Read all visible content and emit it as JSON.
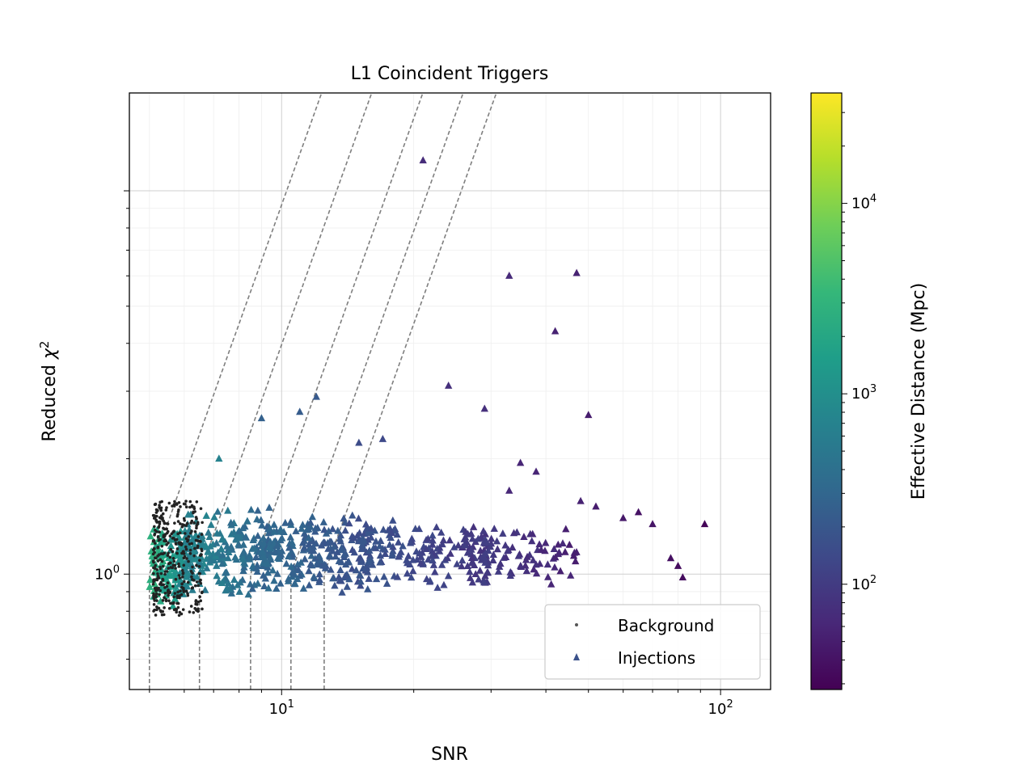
{
  "chart_data": {
    "type": "scatter",
    "title": "L1 Coincident Triggers",
    "xlabel": "SNR",
    "ylabel_prefix": "Reduced ",
    "ylabel_symbol": "χ",
    "ylabel_sup": "2",
    "xscale": "log",
    "yscale": "log",
    "xlim": [
      4.5,
      130
    ],
    "ylim": [
      0.5,
      18
    ],
    "x_ticks": [
      {
        "value": 10,
        "base": "10",
        "exp": "1"
      },
      {
        "value": 100,
        "base": "10",
        "exp": "2"
      }
    ],
    "y_ticks": [
      {
        "value": 1,
        "base": "10",
        "exp": "0"
      }
    ],
    "grid": true,
    "legend": {
      "position": "lower-right",
      "entries": [
        {
          "label": "Background",
          "marker": "dot",
          "color": "#555555"
        },
        {
          "label": "Injections",
          "marker": "triangle",
          "color": "#3b528b"
        }
      ]
    },
    "colorbar": {
      "label": "Effective Distance (Mpc)",
      "scale": "log",
      "range": [
        28,
        38000
      ],
      "ticks": [
        {
          "value": 100,
          "base": "10",
          "exp": "2"
        },
        {
          "value": 1000,
          "base": "10",
          "exp": "3"
        },
        {
          "value": 10000,
          "base": "10",
          "exp": "4"
        }
      ],
      "colormap": [
        "#440154",
        "#482878",
        "#3e4989",
        "#31688e",
        "#26828e",
        "#1f9e89",
        "#35b779",
        "#6ece58",
        "#b5de2b",
        "#fde725"
      ]
    },
    "threshold_curves": [
      {
        "snr_cut": 5.0
      },
      {
        "snr_cut": 6.5
      },
      {
        "snr_cut": 8.5
      },
      {
        "snr_cut": 10.5
      },
      {
        "snr_cut": 12.5
      }
    ],
    "injections_notable": [
      {
        "snr": 21,
        "chi2": 12.0,
        "dist": 70
      },
      {
        "snr": 33,
        "chi2": 6.0,
        "dist": 65
      },
      {
        "snr": 47,
        "chi2": 6.1,
        "dist": 55
      },
      {
        "snr": 42,
        "chi2": 4.3,
        "dist": 55
      },
      {
        "snr": 24,
        "chi2": 3.1,
        "dist": 75
      },
      {
        "snr": 29,
        "chi2": 2.7,
        "dist": 75
      },
      {
        "snr": 50,
        "chi2": 2.6,
        "dist": 50
      },
      {
        "snr": 12,
        "chi2": 2.9,
        "dist": 210
      },
      {
        "snr": 11,
        "chi2": 2.65,
        "dist": 230
      },
      {
        "snr": 9,
        "chi2": 2.55,
        "dist": 260
      },
      {
        "snr": 7.2,
        "chi2": 2.0,
        "dist": 700
      },
      {
        "snr": 15,
        "chi2": 2.2,
        "dist": 150
      },
      {
        "snr": 17,
        "chi2": 2.25,
        "dist": 140
      },
      {
        "snr": 92,
        "chi2": 1.35,
        "dist": 30
      },
      {
        "snr": 80,
        "chi2": 1.05,
        "dist": 35
      },
      {
        "snr": 82,
        "chi2": 0.98,
        "dist": 35
      },
      {
        "snr": 77,
        "chi2": 1.1,
        "dist": 38
      },
      {
        "snr": 65,
        "chi2": 1.45,
        "dist": 40
      },
      {
        "snr": 60,
        "chi2": 1.4,
        "dist": 45
      },
      {
        "snr": 70,
        "chi2": 1.35,
        "dist": 42
      },
      {
        "snr": 38,
        "chi2": 1.85,
        "dist": 60
      },
      {
        "snr": 35,
        "chi2": 1.95,
        "dist": 60
      },
      {
        "snr": 33,
        "chi2": 1.65,
        "dist": 62
      },
      {
        "snr": 48,
        "chi2": 1.55,
        "dist": 55
      },
      {
        "snr": 52,
        "chi2": 1.5,
        "dist": 50
      }
    ],
    "clusters": {
      "injections": [
        {
          "snr_range": [
            5.0,
            6.3
          ],
          "chi2_range": [
            0.82,
            1.35
          ],
          "dist_range": [
            600,
            3000
          ],
          "count": 140
        },
        {
          "snr_range": [
            6.0,
            9.5
          ],
          "chi2_range": [
            0.85,
            1.55
          ],
          "dist_range": [
            250,
            800
          ],
          "count": 220
        },
        {
          "snr_range": [
            9.0,
            16
          ],
          "chi2_range": [
            0.88,
            1.45
          ],
          "dist_range": [
            150,
            350
          ],
          "count": 230
        },
        {
          "snr_range": [
            15,
            30
          ],
          "chi2_range": [
            0.9,
            1.4
          ],
          "dist_range": [
            80,
            200
          ],
          "count": 170
        },
        {
          "snr_range": [
            28,
            48
          ],
          "chi2_range": [
            0.92,
            1.35
          ],
          "dist_range": [
            50,
            110
          ],
          "count": 80
        }
      ],
      "background": [
        {
          "snr_range": [
            5.1,
            6.6
          ],
          "chi2_range": [
            0.78,
            1.55
          ],
          "count": 380
        }
      ]
    }
  }
}
